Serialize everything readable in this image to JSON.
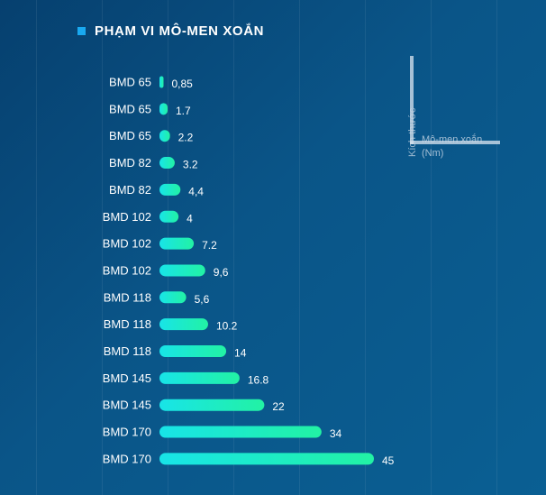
{
  "header": {
    "title": "PHẠM VI MÔ-MEN XOẮN"
  },
  "legend": {
    "y_label": "Kích thước",
    "x_label": "Mô-men xoắn (Nm)"
  },
  "colors": {
    "bar_start": "#18e4e8",
    "bar_end": "#22f2a4",
    "title_marker": "#19a9f0"
  },
  "chart_data": {
    "type": "bar",
    "orientation": "horizontal",
    "title": "PHẠM VI MÔ-MEN XOẮN",
    "xlabel": "Mô-men xoắn (Nm)",
    "ylabel": "Kích thước",
    "categories": [
      "BMD 65",
      "BMD 65",
      "BMD 65",
      "BMD 82",
      "BMD 82",
      "BMD 102",
      "BMD 102",
      "BMD 102",
      "BMD 118",
      "BMD 118",
      "BMD 118",
      "BMD 145",
      "BMD 145",
      "BMD 170",
      "BMD 170"
    ],
    "values": [
      0.85,
      1.7,
      2.2,
      3.2,
      4.4,
      4,
      7.2,
      9.6,
      5.6,
      10.2,
      14,
      16.8,
      22,
      34,
      45
    ],
    "value_labels": [
      "0,85",
      "1.7",
      "2.2",
      "3.2",
      "4,4",
      "4",
      "7.2",
      "9,6",
      "5,6",
      "10.2",
      "14",
      "16.8",
      "22",
      "34",
      "45"
    ],
    "xlim": [
      0,
      45
    ],
    "grid": false
  }
}
